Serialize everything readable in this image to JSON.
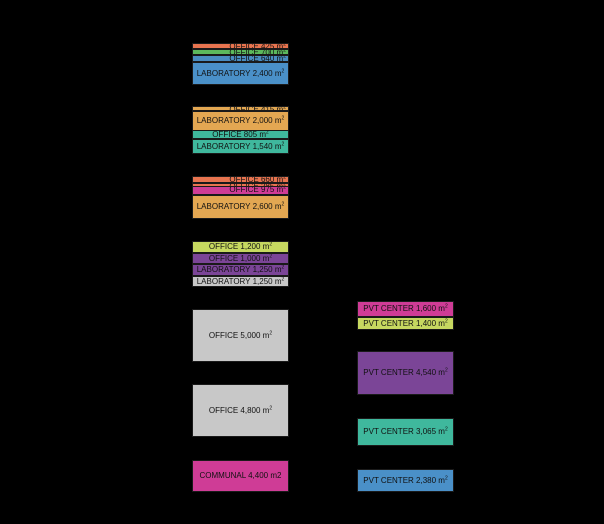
{
  "colors": {
    "office_orange": "#e8744f",
    "office_green": "#5cb85c",
    "office_blue": "#4a8cc0",
    "lab_blue": "#4a90c8",
    "lab_amber": "#e3a752",
    "teal": "#3fb89d",
    "magenta": "#cf3c96",
    "lime": "#c6d860",
    "purple": "#7b4597",
    "grey": "#c8c8c8"
  },
  "blocks": [
    {
      "id": "b1",
      "label": "OFFICE 425 m²",
      "color": "#e8744f"
    },
    {
      "id": "b2",
      "label": "OFFICE 700 m²",
      "color": "#5cb85c"
    },
    {
      "id": "b3",
      "label": "OFFICE 640 m²",
      "color": "#4a8cc0"
    },
    {
      "id": "b4",
      "label": "LABORATORY 2,400 m²",
      "color": "#4a90c8"
    },
    {
      "id": "b5",
      "label": "OFFICE 415 m²",
      "color": "#e3a752"
    },
    {
      "id": "b6",
      "label": "LABORATORY 2,000 m²",
      "color": "#e3a752"
    },
    {
      "id": "b7",
      "label": "OFFICE 805 m²",
      "color": "#3fb89d"
    },
    {
      "id": "b8",
      "label": "LABORATORY 1,540 m²",
      "color": "#3fb89d"
    },
    {
      "id": "b9",
      "label": "OFFICE 660 m²",
      "color": "#e8744f"
    },
    {
      "id": "b10",
      "label": "OFFICE 285 m²",
      "color": "#e8744f"
    },
    {
      "id": "b11",
      "label": "OFFICE 975 m²",
      "color": "#cf3c96"
    },
    {
      "id": "b12",
      "label": "LABORATORY 2,600 m²",
      "color": "#e3a752"
    },
    {
      "id": "b13",
      "label": "OFFICE 1,200 m²",
      "color": "#c6d860"
    },
    {
      "id": "b14",
      "label": "OFFICE 1,000 m²",
      "color": "#7b4597"
    },
    {
      "id": "b15",
      "label": "LABORATORY 1,250 m²",
      "color": "#7b4597"
    },
    {
      "id": "b16",
      "label": "LABORATORY 1,250 m²",
      "color": "#c8c8c8"
    },
    {
      "id": "b17",
      "label": "OFFICE 5,000 m²",
      "color": "#c8c8c8"
    },
    {
      "id": "b18",
      "label": "OFFICE 4,800 m²",
      "color": "#c8c8c8"
    },
    {
      "id": "b19",
      "label": "COMMUNAL 4,400 m2",
      "color": "#cf3c96"
    },
    {
      "id": "b20",
      "label": "PVT CENTER 1,600 m²",
      "color": "#cf3c96"
    },
    {
      "id": "b21",
      "label": "PVT CENTER 1,400 m²",
      "color": "#c6d860"
    },
    {
      "id": "b22",
      "label": "PVT CENTER 4,540 m²",
      "color": "#7b4597"
    },
    {
      "id": "b23",
      "label": "PVT CENTER 3,065 m²",
      "color": "#3fb89d"
    },
    {
      "id": "b24",
      "label": "PVT CENTER 2,380 m²",
      "color": "#4a90c8"
    }
  ]
}
